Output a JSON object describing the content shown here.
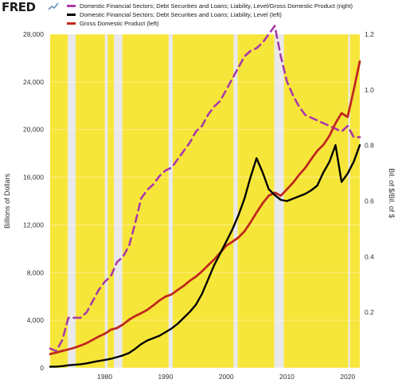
{
  "brand": "FRED",
  "colors": {
    "plot_background": "#f7e63a",
    "recession": "#e9e9e9",
    "ratio": "#a93aa8",
    "debt": "#000000",
    "gdp": "#c0281e"
  },
  "chart_data": {
    "type": "line",
    "xlim": [
      1971,
      2022
    ],
    "ylim_left": [
      0,
      28000
    ],
    "ylim_right": [
      0,
      1.2
    ],
    "ylabel_left": "Billions of Dollars",
    "ylabel_right": "Bil. of $/Bil. of $",
    "x_ticks": [
      1980,
      1990,
      2000,
      2010,
      2020
    ],
    "y_ticks_left": [
      0,
      4000,
      8000,
      12000,
      16000,
      20000,
      24000,
      28000
    ],
    "y_tick_labels_left": [
      "0",
      "4,000",
      "8,000",
      "12,000",
      "16,000",
      "20,000",
      "24,000",
      "28,000"
    ],
    "y_ticks_right": [
      0.2,
      0.4,
      0.6,
      0.8,
      1.0,
      1.2
    ],
    "y_tick_labels_right": [
      "0.2",
      "0.4",
      "0.6",
      "0.8",
      "1.0",
      "1.2"
    ],
    "grid": true,
    "legend_placement": "top",
    "recessions": [
      [
        1973.9,
        1975.2
      ],
      [
        1980.0,
        1980.5
      ],
      [
        1981.5,
        1982.9
      ],
      [
        1990.5,
        1991.2
      ],
      [
        2001.2,
        2001.9
      ],
      [
        2007.9,
        2009.5
      ],
      [
        2020.1,
        2020.4
      ]
    ],
    "series": [
      {
        "name": "Domestic Financial Sectors; Debt Securities and Loans; Liability, Level/Gross Domestic Product (right)",
        "axis": "right",
        "style": "dashed",
        "x": [
          1971,
          1972,
          1973,
          1974,
          1975,
          1976,
          1977,
          1978,
          1979,
          1980,
          1981,
          1982,
          1983,
          1984,
          1985,
          1986,
          1987,
          1988,
          1989,
          1990,
          1991,
          1992,
          1993,
          1994,
          1995,
          1996,
          1997,
          1998,
          1999,
          2000,
          2001,
          2002,
          2003,
          2004,
          2005,
          2006,
          2007,
          2008,
          2009,
          2010,
          2011,
          2012,
          2013,
          2014,
          2015,
          2016,
          2017,
          2018,
          2019,
          2020,
          2021,
          2022
        ],
        "values": [
          0.07,
          0.06,
          0.1,
          0.18,
          0.18,
          0.18,
          0.2,
          0.24,
          0.28,
          0.31,
          0.33,
          0.38,
          0.4,
          0.44,
          0.52,
          0.61,
          0.64,
          0.66,
          0.69,
          0.71,
          0.72,
          0.75,
          0.78,
          0.81,
          0.85,
          0.87,
          0.91,
          0.94,
          0.96,
          1.0,
          1.04,
          1.08,
          1.12,
          1.14,
          1.15,
          1.17,
          1.2,
          1.23,
          1.12,
          1.03,
          0.98,
          0.94,
          0.91,
          0.9,
          0.89,
          0.88,
          0.87,
          0.86,
          0.85,
          0.87,
          0.83,
          0.83
        ]
      },
      {
        "name": "Domestic Financial Sectors; Debt Securities and Loans; Liability, Level (left)",
        "axis": "left",
        "style": "solid",
        "x": [
          1971,
          1972,
          1973,
          1974,
          1975,
          1976,
          1977,
          1978,
          1979,
          1980,
          1981,
          1982,
          1983,
          1984,
          1985,
          1986,
          1987,
          1988,
          1989,
          1990,
          1991,
          1992,
          1993,
          1994,
          1995,
          1996,
          1997,
          1998,
          1999,
          2000,
          2001,
          2002,
          2003,
          2004,
          2005,
          2006,
          2007,
          2008,
          2009,
          2010,
          2011,
          2012,
          2013,
          2014,
          2015,
          2016,
          2017,
          2018,
          2019,
          2020,
          2021,
          2022
        ],
        "values": [
          100,
          110,
          150,
          220,
          260,
          300,
          380,
          480,
          580,
          660,
          760,
          900,
          1050,
          1250,
          1600,
          2000,
          2300,
          2500,
          2700,
          3000,
          3300,
          3700,
          4200,
          4700,
          5300,
          6200,
          7400,
          8600,
          9600,
          10600,
          11600,
          12800,
          14200,
          16000,
          17600,
          16400,
          15000,
          14500,
          14100,
          14000,
          14200,
          14400,
          14600,
          14900,
          15300,
          16400,
          17300,
          18700,
          15600,
          16300,
          17300,
          18700
        ]
      },
      {
        "name": "Gross Domestic Product (left)",
        "axis": "left",
        "style": "solid",
        "x": [
          1971,
          1972,
          1973,
          1974,
          1975,
          1976,
          1977,
          1978,
          1979,
          1980,
          1981,
          1982,
          1983,
          1984,
          1985,
          1986,
          1987,
          1988,
          1989,
          1990,
          1991,
          1992,
          1993,
          1994,
          1995,
          1996,
          1997,
          1998,
          1999,
          2000,
          2001,
          2002,
          2003,
          2004,
          2005,
          2006,
          2007,
          2008,
          2009,
          2010,
          2011,
          2012,
          2013,
          2014,
          2015,
          2016,
          2017,
          2018,
          2019,
          2020,
          2021,
          2022
        ],
        "values": [
          1160,
          1280,
          1430,
          1550,
          1690,
          1870,
          2080,
          2350,
          2630,
          2860,
          3210,
          3340,
          3640,
          4040,
          4350,
          4590,
          4870,
          5250,
          5660,
          5980,
          6170,
          6540,
          6880,
          7310,
          7660,
          8100,
          8610,
          9090,
          9660,
          10250,
          10580,
          10940,
          11460,
          12210,
          13040,
          13820,
          14450,
          14710,
          14450,
          14990,
          15540,
          16200,
          16780,
          17520,
          18220,
          18710,
          19480,
          20530,
          21380,
          21060,
          23320,
          25720
        ]
      }
    ]
  }
}
